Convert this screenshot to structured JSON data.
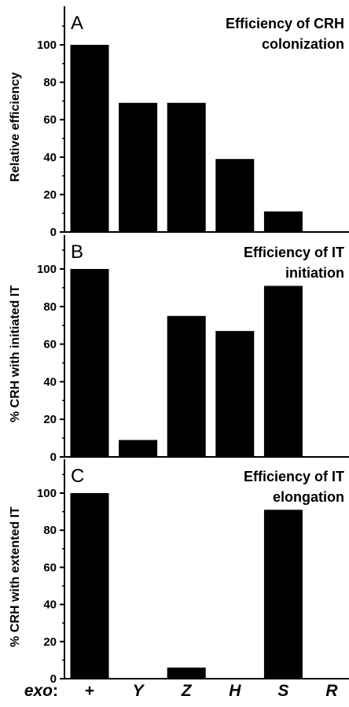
{
  "chart_data": [
    {
      "type": "bar",
      "panel": "A",
      "title_lines": [
        "Efficiency of CRH",
        "colonization"
      ],
      "ylabel": "Relative efficiency",
      "ylim": [
        0,
        110
      ],
      "yticks": [
        0,
        20,
        40,
        60,
        80,
        100
      ],
      "categories": [
        "+",
        "Y",
        "Z",
        "H",
        "S",
        "R"
      ],
      "values": [
        100,
        69,
        69,
        39,
        11,
        0
      ]
    },
    {
      "type": "bar",
      "panel": "B",
      "title_lines": [
        "Efficiency of IT",
        "initiation"
      ],
      "ylabel": "% CRH with initiated IT",
      "ylim": [
        0,
        110
      ],
      "yticks": [
        0,
        20,
        40,
        60,
        80,
        100
      ],
      "categories": [
        "+",
        "Y",
        "Z",
        "H",
        "S",
        "R"
      ],
      "values": [
        100,
        9,
        75,
        67,
        91,
        0
      ]
    },
    {
      "type": "bar",
      "panel": "C",
      "title_lines": [
        "Efficiency of IT",
        "elongation"
      ],
      "ylabel": "% CRH with extented IT",
      "ylim": [
        0,
        110
      ],
      "yticks": [
        0,
        20,
        40,
        60,
        80,
        100
      ],
      "categories": [
        "+",
        "Y",
        "Z",
        "H",
        "S",
        "R"
      ],
      "values": [
        100,
        0,
        6,
        0,
        91,
        0
      ]
    }
  ],
  "x_axis": {
    "label": "exo",
    "separator": ":",
    "categories": [
      "+",
      "Y",
      "Z",
      "H",
      "S",
      "R"
    ]
  },
  "colors": {
    "bar": "#000000",
    "axis": "#000000",
    "background": "#ffffff"
  }
}
